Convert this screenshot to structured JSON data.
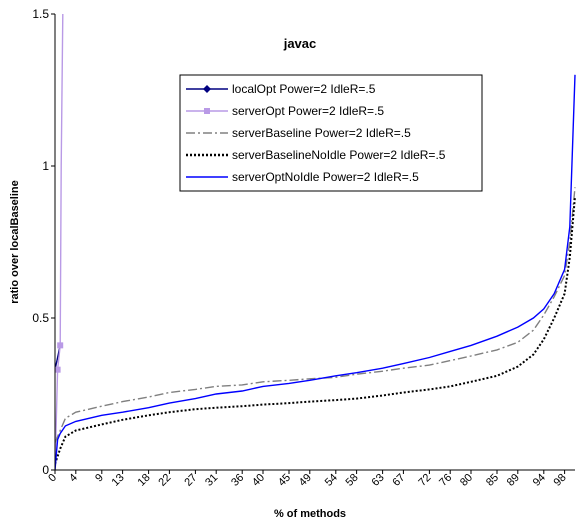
{
  "chart_data": {
    "type": "line",
    "title": "javac",
    "xlabel": "% of methods",
    "ylabel": "ratio over localBaseline",
    "ylim": [
      0,
      1.5
    ],
    "xlim": [
      0,
      100
    ],
    "grid": false,
    "legend_position": "center",
    "y_ticks": [
      "0",
      "0.5",
      "1",
      "1.5"
    ],
    "x_ticks": [
      "0",
      "4",
      "9",
      "13",
      "18",
      "22",
      "27",
      "31",
      "36",
      "40",
      "45",
      "49",
      "54",
      "58",
      "63",
      "67",
      "72",
      "76",
      "80",
      "85",
      "89",
      "94",
      "98"
    ],
    "series": [
      {
        "name": "localOpt Power=2 IdleR=.5",
        "color": "#000080",
        "style": "solid-diamond",
        "x": [
          0,
          1
        ],
        "y": [
          0.33,
          0.41
        ]
      },
      {
        "name": "serverOpt  Power=2 IdleR=.5",
        "color": "#b99ae6",
        "style": "solid-square",
        "x": [
          0,
          0.5,
          1,
          1.2,
          1.5
        ],
        "y": [
          0.0,
          0.33,
          0.41,
          1.0,
          1.5
        ]
      },
      {
        "name": "serverBaseline  Power=2 IdleR=.5",
        "color": "#808080",
        "style": "dashdot",
        "x": [
          0,
          1,
          2,
          4,
          9,
          13,
          18,
          22,
          27,
          31,
          36,
          40,
          45,
          49,
          54,
          58,
          63,
          67,
          72,
          76,
          80,
          85,
          89,
          92,
          94,
          96,
          98,
          99,
          100
        ],
        "y": [
          0.09,
          0.13,
          0.17,
          0.19,
          0.21,
          0.225,
          0.24,
          0.255,
          0.265,
          0.275,
          0.28,
          0.29,
          0.295,
          0.3,
          0.305,
          0.315,
          0.325,
          0.335,
          0.345,
          0.36,
          0.375,
          0.395,
          0.42,
          0.46,
          0.51,
          0.57,
          0.64,
          0.75,
          0.93
        ]
      },
      {
        "name": "serverBaselineNoIdle  Power=2 IdleR=.5",
        "color": "#000000",
        "style": "dotted",
        "x": [
          0,
          1,
          2,
          4,
          9,
          13,
          18,
          22,
          27,
          31,
          36,
          40,
          45,
          49,
          54,
          58,
          63,
          67,
          72,
          76,
          80,
          85,
          89,
          92,
          94,
          96,
          98,
          99,
          100
        ],
        "y": [
          0.02,
          0.07,
          0.11,
          0.13,
          0.15,
          0.165,
          0.18,
          0.19,
          0.2,
          0.205,
          0.21,
          0.215,
          0.22,
          0.225,
          0.23,
          0.235,
          0.245,
          0.255,
          0.265,
          0.275,
          0.29,
          0.31,
          0.34,
          0.38,
          0.43,
          0.5,
          0.58,
          0.7,
          0.9
        ]
      },
      {
        "name": "serverOptNoIdle  Power=2 IdleR=.5",
        "color": "#0000ff",
        "style": "solid",
        "x": [
          0,
          0.5,
          1,
          2,
          4,
          9,
          13,
          18,
          22,
          27,
          31,
          36,
          40,
          45,
          49,
          54,
          58,
          63,
          67,
          72,
          76,
          80,
          85,
          89,
          92,
          94,
          96,
          98,
          99,
          100
        ],
        "y": [
          0.0,
          0.1,
          0.12,
          0.145,
          0.16,
          0.18,
          0.19,
          0.205,
          0.22,
          0.235,
          0.25,
          0.26,
          0.275,
          0.285,
          0.295,
          0.31,
          0.32,
          0.335,
          0.35,
          0.37,
          0.39,
          0.41,
          0.44,
          0.47,
          0.5,
          0.53,
          0.58,
          0.66,
          0.8,
          1.3
        ]
      }
    ]
  }
}
